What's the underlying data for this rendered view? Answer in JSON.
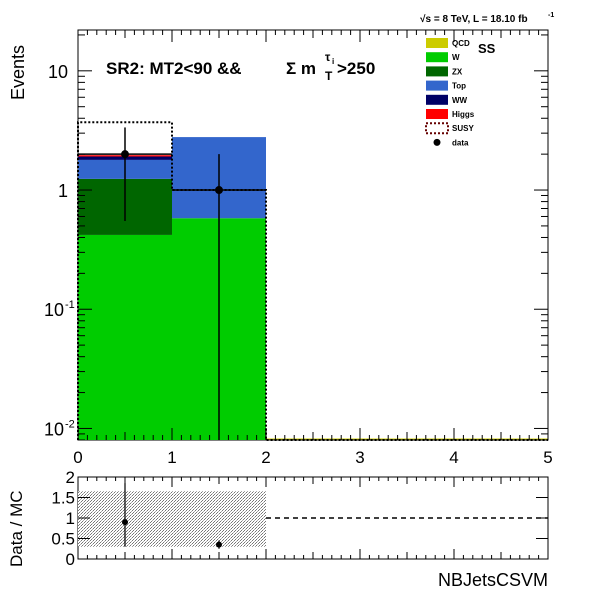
{
  "header": {
    "sqrt_label": "√s = 8 TeV, L = 18.10 fb",
    "lumi_exp": "-1"
  },
  "chart_data": [
    {
      "type": "bar",
      "stacked": true,
      "log_y": true,
      "title": "SR2: MT2<90 &&  Σ m_T^{τ_i}>250",
      "title_parts": {
        "main": "SR2: MT2<90 &&",
        "sigma": "Σ m",
        "sub": "T",
        "sup": "τ",
        "supsub": "i",
        "tail": ">250"
      },
      "ss_tag": "SS",
      "ylabel": "Events",
      "xlabel": "NBJetsCSVM",
      "xlim": [
        0,
        5
      ],
      "ylim": [
        0.008,
        22
      ],
      "x_ticks": [
        "0",
        "1",
        "2",
        "3",
        "4",
        "5"
      ],
      "y_ticks": [
        {
          "value": 10,
          "base": "10",
          "exp": ""
        },
        {
          "value": 1,
          "base": "1",
          "exp": ""
        },
        {
          "value": 0.1,
          "base": "10",
          "exp": "-1"
        },
        {
          "value": 0.01,
          "base": "10",
          "exp": "-2"
        }
      ],
      "bin_edges": [
        0,
        1,
        2,
        3,
        4,
        5
      ],
      "series": [
        {
          "name": "QCD",
          "color": "#cccc00",
          "values": [
            0,
            0,
            0,
            0,
            0
          ]
        },
        {
          "name": "W",
          "color": "#00cc00",
          "values": [
            0.42,
            0.58,
            0,
            0,
            0
          ]
        },
        {
          "name": "ZX",
          "color": "#006600",
          "values": [
            0.82,
            0,
            0,
            0,
            0
          ]
        },
        {
          "name": "Top",
          "color": "#3366cc",
          "values": [
            0.55,
            2.2,
            0,
            0,
            0
          ]
        },
        {
          "name": "WW",
          "color": "#000066",
          "values": [
            0.12,
            0,
            0,
            0,
            0
          ]
        },
        {
          "name": "Higgs",
          "color": "#ff0000",
          "values": [
            0.05,
            0,
            0,
            0,
            0
          ]
        }
      ],
      "signal": {
        "name": "SUSY",
        "color": "#660000",
        "values": [
          3.7,
          1.0,
          0,
          0,
          0
        ]
      },
      "data": {
        "name": "data",
        "x": [
          0.5,
          1.5
        ],
        "y": [
          2,
          1
        ],
        "err_low": [
          1.45,
          1.0
        ],
        "err_high": [
          1.35,
          1.0
        ]
      },
      "legend_position": "top-right"
    },
    {
      "type": "scatter",
      "ylabel": "Data / MC",
      "xlim": [
        0,
        5
      ],
      "ylim": [
        0,
        2
      ],
      "y_ticks": [
        "0",
        "0.5",
        "1",
        "1.5",
        "2"
      ],
      "reference_line": 1,
      "mc_uncertainty_band": [
        {
          "x0": 0,
          "x1": 1,
          "low": 0.3,
          "high": 1.65
        },
        {
          "x0": 1,
          "x1": 2,
          "low": 0.3,
          "high": 1.65
        }
      ],
      "ratio": {
        "x": [
          0.5,
          1.5
        ],
        "y": [
          0.9,
          0.35
        ],
        "err_low": [
          0.6,
          0.1
        ],
        "err_high": [
          0.95,
          0.1
        ]
      }
    }
  ]
}
